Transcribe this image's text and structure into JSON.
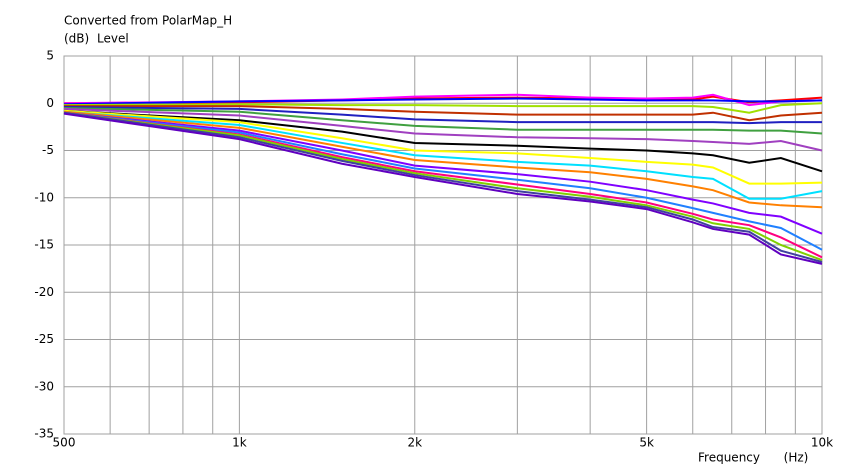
{
  "chart_data": {
    "type": "line",
    "title": "Converted from PolarMap_H",
    "y_unit": "(dB)",
    "y_label": "Level",
    "x_label": "Frequency",
    "x_unit": "(Hz)",
    "log_x": true,
    "grid": true,
    "xlim": [
      500,
      10000
    ],
    "xticks": [
      {
        "value": 500,
        "label": "500"
      },
      {
        "value": 1000,
        "label": "1k"
      },
      {
        "value": 2000,
        "label": "2k"
      },
      {
        "value": 5000,
        "label": "5k"
      },
      {
        "value": 10000,
        "label": "10k"
      }
    ],
    "xminorticks": [
      600,
      700,
      800,
      900,
      3000,
      4000,
      6000,
      7000,
      8000,
      9000
    ],
    "ylim": [
      -35,
      5
    ],
    "yticks": [
      5,
      0,
      -5,
      -10,
      -15,
      -20,
      -25,
      -30,
      -35
    ],
    "x": [
      500,
      1000,
      1500,
      2000,
      3000,
      4000,
      5000,
      6000,
      6500,
      7500,
      8500,
      10000
    ],
    "series": [
      {
        "color": "#ff0000",
        "values": [
          0,
          0.1,
          0.3,
          0.5,
          0.6,
          0.5,
          0.4,
          0.4,
          0.7,
          0.1,
          0.3,
          0.6
        ]
      },
      {
        "color": "#ff00ff",
        "values": [
          0,
          0.2,
          0.4,
          0.7,
          0.9,
          0.6,
          0.5,
          0.6,
          0.9,
          -0.2,
          0.2,
          0.3
        ]
      },
      {
        "color": "#0000ff",
        "values": [
          -0.1,
          0.2,
          0.3,
          0.4,
          0.5,
          0.4,
          0.3,
          0.3,
          0.3,
          0.2,
          0.2,
          0.3
        ]
      },
      {
        "color": "#a0e000",
        "values": [
          -0.2,
          -0.1,
          -0.2,
          -0.2,
          -0.3,
          -0.3,
          -0.3,
          -0.3,
          -0.4,
          -1,
          -0.2,
          0
        ]
      },
      {
        "color": "#c03000",
        "values": [
          -0.3,
          -0.3,
          -0.6,
          -0.9,
          -1.2,
          -1.2,
          -1.2,
          -1.2,
          -1,
          -1.8,
          -1.3,
          -1
        ]
      },
      {
        "color": "#2020c0",
        "values": [
          -0.4,
          -0.6,
          -1.2,
          -1.7,
          -2,
          -2,
          -2,
          -2,
          -2,
          -2.1,
          -2,
          -2
        ]
      },
      {
        "color": "#40a040",
        "values": [
          -0.5,
          -0.9,
          -1.8,
          -2.4,
          -2.8,
          -2.8,
          -2.8,
          -2.8,
          -2.8,
          -2.9,
          -2.9,
          -3.2
        ]
      },
      {
        "color": "#a040c0",
        "values": [
          -0.6,
          -1.3,
          -2.4,
          -3.2,
          -3.6,
          -3.7,
          -3.8,
          -4,
          -4.1,
          -4.3,
          -4,
          -5
        ]
      },
      {
        "color": "#000000",
        "values": [
          -0.8,
          -1.8,
          -3,
          -4.2,
          -4.5,
          -4.8,
          -5,
          -5.3,
          -5.5,
          -6.3,
          -5.8,
          -7.2
        ]
      },
      {
        "color": "#ffff00",
        "values": [
          -0.8,
          -2,
          -3.7,
          -5,
          -5.3,
          -5.8,
          -6.2,
          -6.5,
          -6.8,
          -8.5,
          -8.5,
          -8.4
        ]
      },
      {
        "color": "#00e0ff",
        "values": [
          -0.9,
          -2.3,
          -4.2,
          -5.5,
          -6.2,
          -6.6,
          -7.2,
          -7.8,
          -8,
          -10.1,
          -10.1,
          -9.3
        ]
      },
      {
        "color": "#ff8000",
        "values": [
          -0.9,
          -2.6,
          -4.6,
          -6,
          -6.8,
          -7.3,
          -8,
          -8.8,
          -9.2,
          -10.5,
          -10.8,
          -11
        ]
      },
      {
        "color": "#8000ff",
        "values": [
          -1,
          -2.9,
          -5,
          -6.6,
          -7.5,
          -8.3,
          -9.2,
          -10.2,
          -10.6,
          -11.6,
          -12,
          -13.8
        ]
      },
      {
        "color": "#2080ff",
        "values": [
          -1,
          -3.1,
          -5.4,
          -6.9,
          -8.1,
          -9,
          -10,
          -11.1,
          -11.6,
          -12.5,
          -13.2,
          -15.5
        ]
      },
      {
        "color": "#ff0080",
        "values": [
          -1,
          -3.3,
          -5.7,
          -7.2,
          -8.6,
          -9.6,
          -10.5,
          -11.7,
          -12.3,
          -12.9,
          -14.2,
          -16.3
        ]
      },
      {
        "color": "#80d000",
        "values": [
          -1,
          -3.4,
          -5.9,
          -7.4,
          -9,
          -9.9,
          -10.8,
          -12,
          -12.7,
          -13.3,
          -15,
          -16.6
        ]
      },
      {
        "color": "#4040a0",
        "values": [
          -1,
          -3.6,
          -6.1,
          -7.6,
          -9.3,
          -10.2,
          -11,
          -12.3,
          -13.1,
          -13.6,
          -15.6,
          -16.8
        ]
      },
      {
        "color": "#6000c0",
        "values": [
          -1.1,
          -3.8,
          -6.4,
          -7.8,
          -9.6,
          -10.4,
          -11.2,
          -12.6,
          -13.3,
          -13.9,
          -16,
          -17
        ]
      }
    ]
  }
}
